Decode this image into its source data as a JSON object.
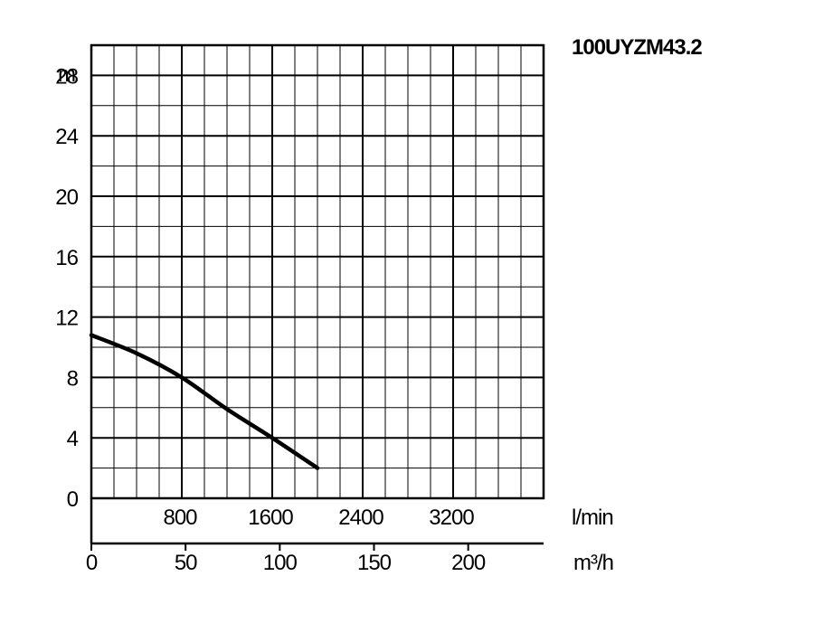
{
  "chart_data": {
    "type": "line",
    "title": "100UYZM43.2",
    "ylabel": "m",
    "x_unit_top": "l/min",
    "x_unit_bottom": "m³/h",
    "ylim": [
      0,
      30
    ],
    "xlim_lmin": [
      0,
      4000
    ],
    "xlim_m3h": [
      0,
      240
    ],
    "y_ticks": [
      0,
      4,
      8,
      12,
      16,
      20,
      24,
      28
    ],
    "x_ticks_lmin": [
      800,
      1600,
      2400,
      3200
    ],
    "x_ticks_m3h": [
      0,
      50,
      100,
      150,
      200
    ],
    "grid": true,
    "series": [
      {
        "x_lmin": [
          0,
          400,
          800,
          1200,
          1600,
          2000
        ],
        "y": [
          10.8,
          9.6,
          8.0,
          5.9,
          4.0,
          2.0
        ]
      }
    ]
  }
}
